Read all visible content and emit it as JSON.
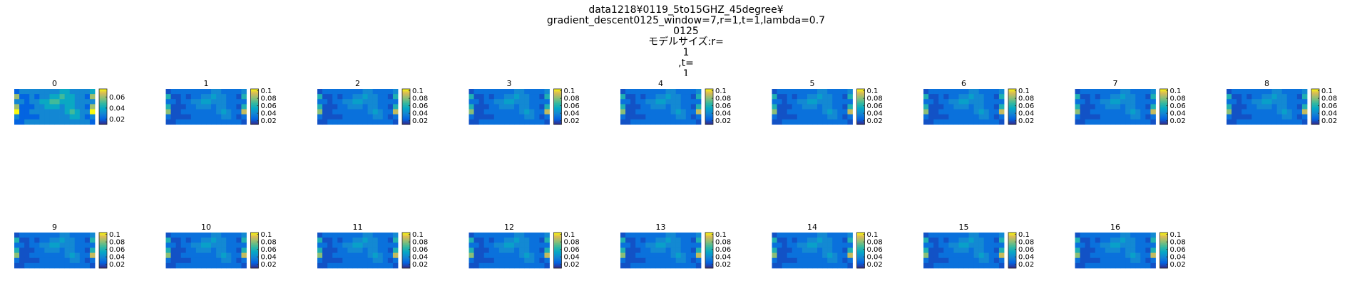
{
  "chart_data": {
    "type": "heatmap",
    "title_lines": [
      "data1218¥0119_5to15GHZ_45degree¥",
      "gradient_descent0125_window=7,r=1,t=1,lambda=0.7",
      "0125",
      "モデルサイズ:r=",
      "1",
      ",t=",
      "1"
    ],
    "panels": [
      {
        "label": "0",
        "colorbar_ticks": [
          "0.06",
          "0.04",
          "0.02"
        ],
        "colorbar_range": [
          0.01,
          0.075
        ]
      },
      {
        "label": "1",
        "colorbar_ticks": [
          "0.1",
          "0.08",
          "0.06",
          "0.04",
          "0.02"
        ],
        "colorbar_range": [
          0.01,
          0.105
        ]
      },
      {
        "label": "2",
        "colorbar_ticks": [
          "0.1",
          "0.08",
          "0.06",
          "0.04",
          "0.02"
        ],
        "colorbar_range": [
          0.01,
          0.105
        ]
      },
      {
        "label": "3",
        "colorbar_ticks": [
          "0.1",
          "0.08",
          "0.06",
          "0.04",
          "0.02"
        ],
        "colorbar_range": [
          0.01,
          0.105
        ]
      },
      {
        "label": "4",
        "colorbar_ticks": [
          "0.1",
          "0.08",
          "0.06",
          "0.04",
          "0.02"
        ],
        "colorbar_range": [
          0.01,
          0.105
        ]
      },
      {
        "label": "5",
        "colorbar_ticks": [
          "0.1",
          "0.08",
          "0.06",
          "0.04",
          "0.02"
        ],
        "colorbar_range": [
          0.01,
          0.105
        ]
      },
      {
        "label": "6",
        "colorbar_ticks": [
          "0.1",
          "0.08",
          "0.06",
          "0.04",
          "0.02"
        ],
        "colorbar_range": [
          0.01,
          0.105
        ]
      },
      {
        "label": "7",
        "colorbar_ticks": [
          "0.1",
          "0.08",
          "0.06",
          "0.04",
          "0.02"
        ],
        "colorbar_range": [
          0.01,
          0.105
        ]
      },
      {
        "label": "8",
        "colorbar_ticks": [
          "0.1",
          "0.08",
          "0.06",
          "0.04",
          "0.02"
        ],
        "colorbar_range": [
          0.01,
          0.105
        ]
      },
      {
        "label": "9",
        "colorbar_ticks": [
          "0.1",
          "0.08",
          "0.06",
          "0.04",
          "0.02"
        ],
        "colorbar_range": [
          0.01,
          0.105
        ]
      },
      {
        "label": "10",
        "colorbar_ticks": [
          "0.1",
          "0.08",
          "0.06",
          "0.04",
          "0.02"
        ],
        "colorbar_range": [
          0.01,
          0.105
        ]
      },
      {
        "label": "11",
        "colorbar_ticks": [
          "0.1",
          "0.08",
          "0.06",
          "0.04",
          "0.02"
        ],
        "colorbar_range": [
          0.01,
          0.105
        ]
      },
      {
        "label": "12",
        "colorbar_ticks": [
          "0.1",
          "0.08",
          "0.06",
          "0.04",
          "0.02"
        ],
        "colorbar_range": [
          0.01,
          0.105
        ]
      },
      {
        "label": "13",
        "colorbar_ticks": [
          "0.1",
          "0.08",
          "0.06",
          "0.04",
          "0.02"
        ],
        "colorbar_range": [
          0.01,
          0.105
        ]
      },
      {
        "label": "14",
        "colorbar_ticks": [
          "0.1",
          "0.08",
          "0.06",
          "0.04",
          "0.02"
        ],
        "colorbar_range": [
          0.01,
          0.105
        ]
      },
      {
        "label": "15",
        "colorbar_ticks": [
          "0.1",
          "0.08",
          "0.06",
          "0.04",
          "0.02"
        ],
        "colorbar_range": [
          0.01,
          0.105
        ]
      },
      {
        "label": "16",
        "colorbar_ticks": [
          "0.1",
          "0.08",
          "0.06",
          "0.04",
          "0.02"
        ],
        "colorbar_range": [
          0.01,
          0.105
        ]
      }
    ],
    "heatmap_values": [
      [
        0.02,
        0.03,
        0.03,
        0.03,
        0.03,
        0.03,
        0.03,
        0.03,
        0.03,
        0.04,
        0.04,
        0.03,
        0.03,
        0.03,
        0.03,
        0.04
      ],
      [
        0.06,
        0.02,
        0.02,
        0.03,
        0.02,
        0.03,
        0.03,
        0.04,
        0.04,
        0.05,
        0.04,
        0.04,
        0.03,
        0.03,
        0.02,
        0.06
      ],
      [
        0.03,
        0.03,
        0.02,
        0.03,
        0.03,
        0.04,
        0.04,
        0.05,
        0.05,
        0.04,
        0.04,
        0.04,
        0.03,
        0.03,
        0.03,
        0.03
      ],
      [
        0.06,
        0.02,
        0.02,
        0.02,
        0.03,
        0.03,
        0.04,
        0.04,
        0.04,
        0.03,
        0.04,
        0.04,
        0.03,
        0.03,
        0.02,
        0.06
      ],
      [
        0.08,
        0.02,
        0.02,
        0.03,
        0.03,
        0.03,
        0.03,
        0.03,
        0.03,
        0.03,
        0.04,
        0.05,
        0.04,
        0.03,
        0.03,
        0.09
      ],
      [
        0.03,
        0.02,
        0.02,
        0.02,
        0.02,
        0.03,
        0.03,
        0.03,
        0.03,
        0.03,
        0.03,
        0.04,
        0.04,
        0.03,
        0.02,
        0.03
      ],
      [
        0.02,
        0.02,
        0.03,
        0.03,
        0.03,
        0.03,
        0.03,
        0.03,
        0.03,
        0.03,
        0.03,
        0.03,
        0.03,
        0.03,
        0.03,
        0.02
      ]
    ],
    "colormap": "parula",
    "grid": false,
    "legend": "colorbar-right"
  }
}
